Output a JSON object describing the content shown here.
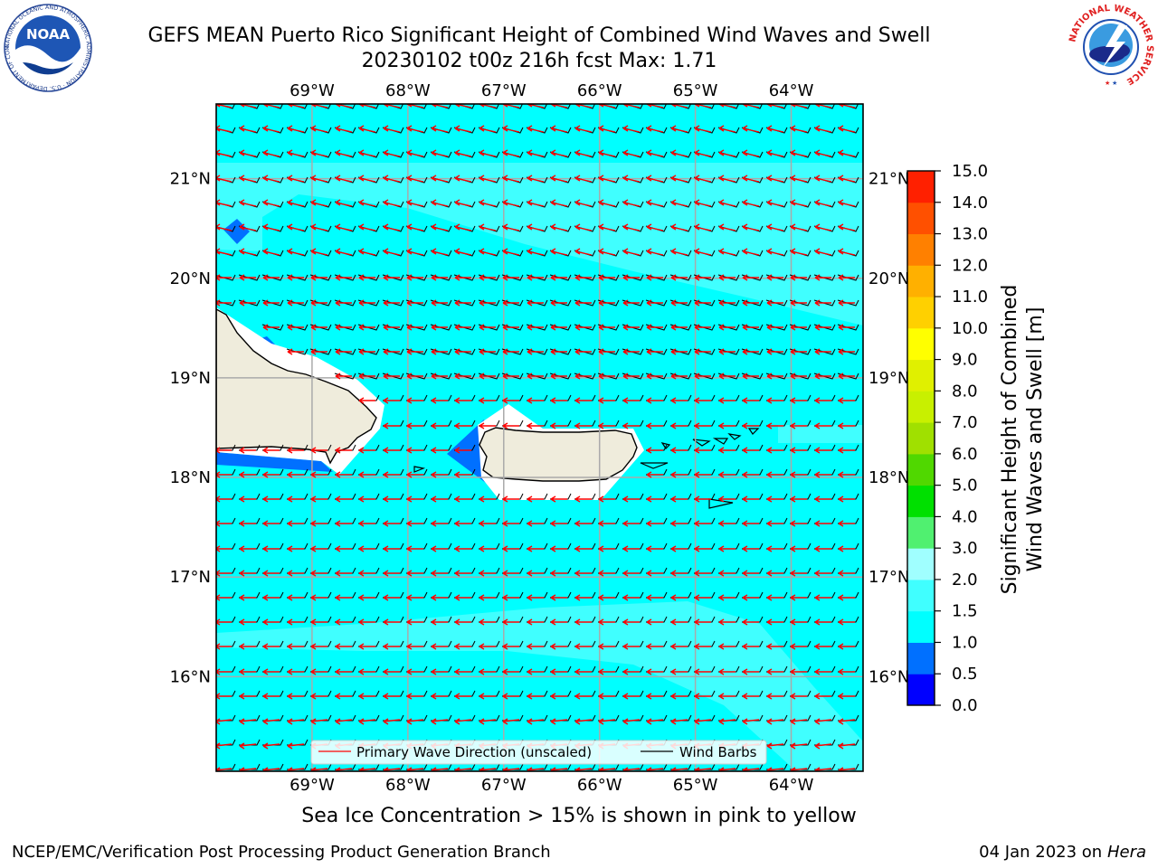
{
  "title": {
    "line1": "GEFS MEAN Puerto Rico Significant Height of Combined Wind Waves and Swell",
    "line2": "20230102 t00z 216h fcst   Max: 1.71"
  },
  "map": {
    "lon_labels": [
      "69°W",
      "68°W",
      "67°W",
      "66°W",
      "65°W",
      "64°W"
    ],
    "lat_labels": [
      "21°N",
      "20°N",
      "19°N",
      "18°N",
      "17°N",
      "16°N"
    ],
    "lon_values": [
      -69,
      -68,
      -67,
      -66,
      -65,
      -64
    ],
    "lat_values": [
      21,
      20,
      19,
      18,
      17,
      16
    ],
    "lon_range": [
      -70,
      -63.25
    ],
    "lat_range": [
      15.05,
      21.75
    ],
    "sea_color": "#00ffff",
    "lighter_band_color": "#40ffff",
    "deep_low_color": "#0070ff",
    "land_color": "#efecdc",
    "wave_dir_color": "#ff0000",
    "wind_barb_color": "#000000"
  },
  "legend": {
    "primary_wave": "Primary Wave Direction (unscaled)",
    "wind_barbs": "Wind Barbs"
  },
  "colorbar": {
    "label_line1": "Significant Height of Combined",
    "label_line2": "Wind Waves and Swell [m]",
    "ticks": [
      "0.0",
      "0.5",
      "1.0",
      "1.5",
      "2.0",
      "3.0",
      "4.0",
      "5.0",
      "6.0",
      "7.0",
      "8.0",
      "9.0",
      "10.0",
      "11.0",
      "12.0",
      "13.0",
      "14.0",
      "15.0"
    ],
    "colors": [
      "#0000ff",
      "#0070ff",
      "#00ffff",
      "#40ffff",
      "#a0ffff",
      "#50f070",
      "#00e000",
      "#50d800",
      "#a0e000",
      "#c8f000",
      "#e0f000",
      "#ffff00",
      "#ffd000",
      "#ffb000",
      "#ff8000",
      "#ff5000",
      "#ff2000"
    ]
  },
  "note": "Sea Ice Concentration > 15% is shown in pink to yellow",
  "footer": {
    "left": "NCEP/EMC/Verification Post Processing Product Generation Branch",
    "right_date": "04 Jan 2023 on",
    "right_host": "Hera"
  },
  "logos": {
    "noaa_text": "NOAA",
    "noaa_ring_text": "NATIONAL OCEANIC AND ATMOSPHERIC ADMINISTRATION · U.S. DEPARTMENT OF COMMERCE",
    "nws_ring_text": "NATIONAL WEATHER SERVICE"
  }
}
